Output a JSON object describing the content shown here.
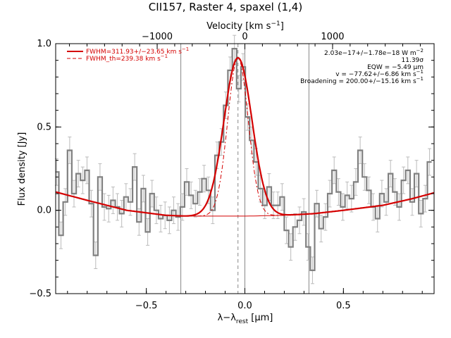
{
  "chart_data": {
    "type": "line",
    "title": "CII157, Raster 4, spaxel (1,4)",
    "xlabel": "λ−λ",
    "xlabel_sub": "rest",
    "xlabel_unit": " [μm]",
    "ylabel": "Flux density [Jy]",
    "top_axis_label": "Velocity [km s",
    "top_axis_label_sup": "−1",
    "top_axis_label_end": "]",
    "xlim": [
      -0.96,
      0.96
    ],
    "ylim": [
      -0.5,
      1.0
    ],
    "x_ticks": [
      -0.5,
      0.0,
      0.5
    ],
    "x_tick_labels": [
      "−0.5",
      "0.0",
      "0.5"
    ],
    "y_ticks": [
      -0.5,
      0.0,
      0.5,
      1.0
    ],
    "y_tick_labels": [
      "−0.5",
      "0.0",
      "0.5",
      "1.0"
    ],
    "top_ticks": [
      -1000,
      0,
      1000
    ],
    "top_tick_labels": [
      "−1000",
      "0",
      "1000"
    ],
    "top_axis_um_per_kms": 0.000445,
    "vlines": [
      -0.325,
      0.0,
      0.325
    ],
    "centroid_line": -0.035,
    "legend": [
      {
        "label": "FWHM=311.93+/−23.65 km s",
        "sup": "−1",
        "style": "solid"
      },
      {
        "label": "FWHM_th=239.38 km s",
        "sup": "−1",
        "style": "dashed"
      }
    ],
    "annotations": [
      {
        "text": "2.03e−17+/−1.78e−18 W m",
        "sup": "−2"
      },
      {
        "text": "11.39σ",
        "sup": ""
      },
      {
        "text": "EQW = −5.49 μm",
        "sup": ""
      },
      {
        "text": "v = −77.62+/−6.86 km s",
        "sup": "−1"
      },
      {
        "text": "Broadening = 200.00+/−15.16 km s",
        "sup": "−1"
      }
    ],
    "data_step": {
      "x": [
        -0.955,
        -0.933,
        -0.911,
        -0.889,
        -0.867,
        -0.845,
        -0.823,
        -0.801,
        -0.779,
        -0.757,
        -0.735,
        -0.713,
        -0.691,
        -0.669,
        -0.647,
        -0.625,
        -0.603,
        -0.581,
        -0.559,
        -0.537,
        -0.515,
        -0.493,
        -0.471,
        -0.449,
        -0.427,
        -0.405,
        -0.383,
        -0.361,
        -0.339,
        -0.317,
        -0.295,
        -0.273,
        -0.251,
        -0.229,
        -0.207,
        -0.185,
        -0.163,
        -0.141,
        -0.119,
        -0.097,
        -0.075,
        -0.053,
        -0.031,
        -0.009,
        0.013,
        0.035,
        0.057,
        0.079,
        0.101,
        0.123,
        0.145,
        0.167,
        0.189,
        0.211,
        0.233,
        0.255,
        0.277,
        0.299,
        0.321,
        0.343,
        0.365,
        0.387,
        0.409,
        0.431,
        0.453,
        0.475,
        0.497,
        0.519,
        0.541,
        0.563,
        0.585,
        0.607,
        0.629,
        0.651,
        0.673,
        0.695,
        0.717,
        0.739,
        0.761,
        0.783,
        0.805,
        0.827,
        0.849,
        0.871,
        0.893,
        0.915,
        0.937
      ],
      "y": [
        0.23,
        -0.15,
        0.05,
        0.36,
        0.1,
        0.22,
        0.18,
        0.24,
        0.04,
        -0.27,
        0.2,
        0.02,
        0.01,
        0.06,
        0.02,
        -0.02,
        0.08,
        0.05,
        0.26,
        -0.07,
        0.13,
        -0.13,
        0.1,
        0.0,
        -0.05,
        -0.03,
        -0.06,
        0.0,
        -0.04,
        0.02,
        0.17,
        0.09,
        0.04,
        0.11,
        0.19,
        0.12,
        0.0,
        0.33,
        0.41,
        0.63,
        0.84,
        0.97,
        0.73,
        0.86,
        0.56,
        0.42,
        0.29,
        0.13,
        0.03,
        0.14,
        0.03,
        0.03,
        0.08,
        -0.12,
        -0.22,
        -0.1,
        -0.06,
        -0.01,
        -0.22,
        -0.36,
        0.04,
        -0.11,
        -0.04,
        0.1,
        0.24,
        0.11,
        0.02,
        0.09,
        0.07,
        0.17,
        0.36,
        0.2,
        0.12,
        0.02,
        -0.05,
        0.1,
        0.05,
        0.22,
        0.11,
        0.02,
        0.18,
        0.24,
        0.05,
        0.22,
        -0.02,
        0.07,
        0.29
      ],
      "err": 0.08
    },
    "fit": {
      "amplitude": 0.95,
      "center": -0.035,
      "sigma": 0.071,
      "sigma_th": 0.052,
      "baseline_x": [
        -0.96,
        -0.8,
        -0.6,
        -0.4,
        -0.3,
        -0.2,
        0.0,
        0.2,
        0.35,
        0.5,
        0.7,
        0.85,
        0.96
      ],
      "baseline_y": [
        0.11,
        0.06,
        0.0,
        -0.03,
        -0.035,
        -0.035,
        -0.035,
        -0.03,
        -0.02,
        0.0,
        0.03,
        0.07,
        0.105
      ]
    }
  }
}
